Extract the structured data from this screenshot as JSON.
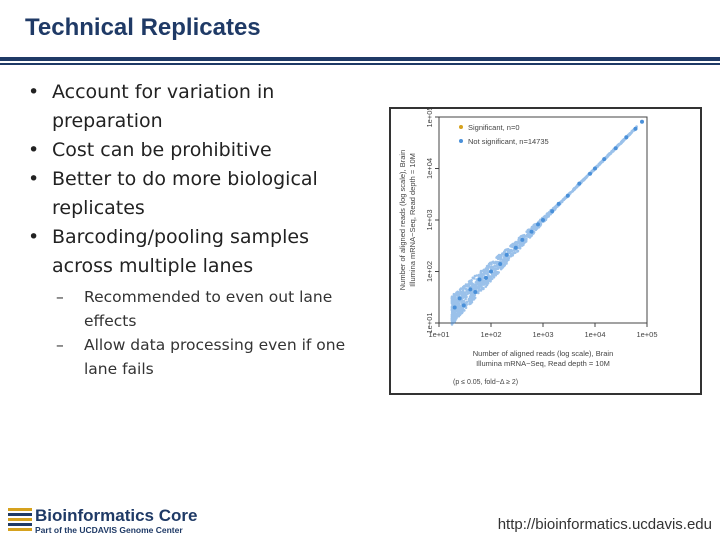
{
  "slide": {
    "title": "Technical Replicates",
    "bullets": [
      "Account for variation in preparation",
      "Cost can be prohibitive",
      "Better to do more biological replicates",
      "Barcoding/pooling samples across multiple lanes"
    ],
    "sub_bullets": [
      "Recommended to even out lane effects",
      "Allow data processing even if one lane fails"
    ],
    "bullet_mark": "•",
    "sub_bullet_mark": "–"
  },
  "figure": {
    "legend": [
      {
        "label": "Significant, n=0",
        "color": "#d6a21e"
      },
      {
        "label": "Not significant, n=14735",
        "color": "#4a90d9"
      }
    ],
    "x_tick_labels": [
      "1e+01",
      "1e+02",
      "1e+03",
      "1e+04",
      "1e+05"
    ],
    "y_tick_labels": [
      "1e+01",
      "1e+02",
      "1e+03",
      "1e+04",
      "1e+05"
    ],
    "xlabel_line1": "Number of aligned reads (log scale), Brain",
    "xlabel_line2": "Illumina mRNA−Seq, Read depth = 10M",
    "ylabel_line1": "Number of aligned reads (log scale), Brain",
    "ylabel_line2": "Illumina mRNA−Seq, Read depth = 10M",
    "note": "(p ≤ 0.05, fold−Δ ≥ 2)"
  },
  "chart_data": {
    "type": "scatter",
    "xlabel": "Number of aligned reads (log scale), Brain Illumina mRNA−Seq, Read depth = 10M",
    "ylabel": "Number of aligned reads (log scale), Brain Illumina mRNA−Seq, Read depth = 10M",
    "log_scale": true,
    "xlim": [
      10,
      100000
    ],
    "ylim": [
      10,
      100000
    ],
    "legend_position": "top-left",
    "grid": false,
    "series": [
      {
        "name": "Significant, n=0",
        "color": "#d6a21e",
        "points": []
      },
      {
        "name": "Not significant, n=14735",
        "color": "#4a90d9",
        "points": [
          [
            20,
            20
          ],
          [
            25,
            30
          ],
          [
            30,
            22
          ],
          [
            40,
            45
          ],
          [
            50,
            40
          ],
          [
            60,
            70
          ],
          [
            80,
            75
          ],
          [
            100,
            100
          ],
          [
            150,
            140
          ],
          [
            200,
            210
          ],
          [
            300,
            290
          ],
          [
            400,
            410
          ],
          [
            600,
            590
          ],
          [
            800,
            820
          ],
          [
            1000,
            1000
          ],
          [
            1500,
            1480
          ],
          [
            2000,
            2050
          ],
          [
            3000,
            2950
          ],
          [
            5000,
            5100
          ],
          [
            8000,
            7900
          ],
          [
            10000,
            10000
          ],
          [
            15000,
            15200
          ],
          [
            25000,
            24800
          ],
          [
            40000,
            40500
          ],
          [
            60000,
            59000
          ],
          [
            80000,
            81000
          ]
        ]
      }
    ],
    "n_points_total": 14735
  },
  "footer": {
    "logo_title": "Bioinformatics Core",
    "logo_subtitle": "Part of the UCDAVIS Genome Center",
    "url": "http://bioinformatics.ucdavis.edu"
  }
}
